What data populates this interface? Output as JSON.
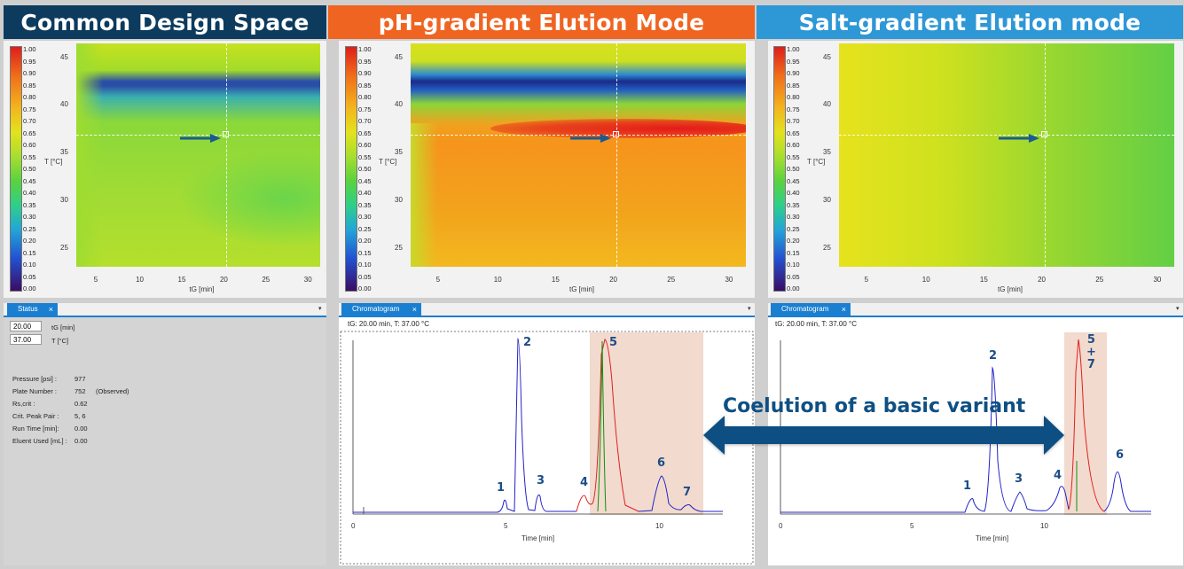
{
  "banners": {
    "common": {
      "text": "Common Design Space",
      "color": "#0d3b5e"
    },
    "ph": {
      "text": "pH-gradient Elution Mode",
      "color": "#ef6421"
    },
    "salt": {
      "text": "Salt-gradient Elution mode",
      "color": "#2e97d6"
    }
  },
  "colorbar_labels": [
    "1.00",
    "0.95",
    "0.90",
    "0.85",
    "0.80",
    "0.75",
    "0.70",
    "0.65",
    "0.60",
    "0.55",
    "0.50",
    "0.45",
    "0.40",
    "0.35",
    "0.30",
    "0.25",
    "0.20",
    "0.15",
    "0.10",
    "0.05",
    "0.00"
  ],
  "axes": {
    "y_label": "T [°C]",
    "x_label": "tG [min]",
    "y_ticks": [
      "45",
      "40",
      "35",
      "30",
      "25"
    ],
    "x_ticks": [
      "5",
      "10",
      "15",
      "20",
      "25",
      "30"
    ]
  },
  "status_panel": {
    "tab": "Status",
    "tg_value": "20.00",
    "tg_unit": "tG [min]",
    "t_value": "37.00",
    "t_unit": "T [°C]",
    "rows": [
      {
        "label": "Pressure [psi] :",
        "value": "977",
        "extra": ""
      },
      {
        "label": "Plate Number :",
        "value": "752",
        "extra": "(Observed)"
      },
      {
        "label": "Rs,crit :",
        "value": "0.62",
        "extra": ""
      },
      {
        "label": "Crit. Peak Pair :",
        "value": "5, 6",
        "extra": ""
      },
      {
        "label": "Run Time [min]:",
        "value": "0.00",
        "extra": ""
      },
      {
        "label": "Eluent Used [mL] :",
        "value": "0.00",
        "extra": ""
      }
    ]
  },
  "chromatograms": {
    "tab": "Chromatogram",
    "header": "tG: 20.00 min, T: 37.00 °C",
    "x_label": "Time [min]",
    "ph_x_ticks": [
      "0",
      "5",
      "10"
    ],
    "salt_x_ticks": [
      "0",
      "5",
      "10"
    ],
    "ph_peaks": [
      "1",
      "2",
      "3",
      "4",
      "5",
      "6",
      "7"
    ],
    "salt_peaks": [
      "1",
      "2",
      "3",
      "4",
      "5\n+\n7",
      "6"
    ]
  },
  "annotation": {
    "text": "Coelution of a basic variant",
    "color": "#0f5083"
  },
  "colors": {
    "arrow": "#1b5b92",
    "highlight": "#f0d3c6",
    "blue_trace": "#2222c8",
    "red_trace": "#e02020",
    "green_trace": "#109010"
  }
}
